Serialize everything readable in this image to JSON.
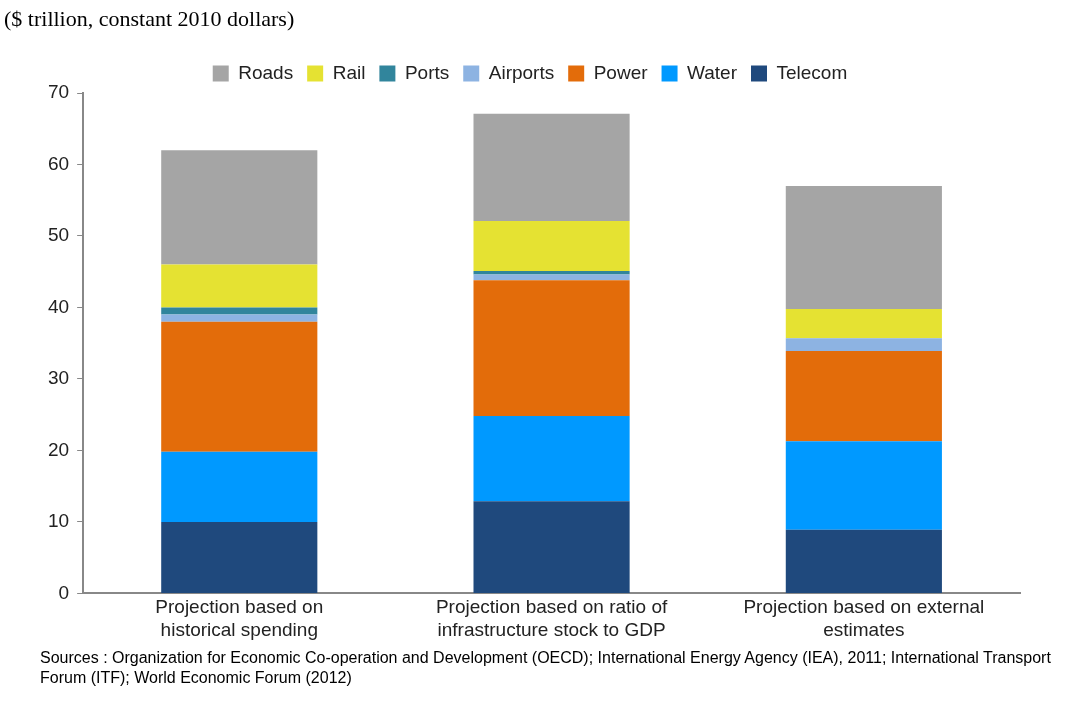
{
  "chart_data": {
    "type": "bar",
    "stacked": true,
    "ylabel": "($ trillion, constant 2010 dollars)",
    "categories": [
      "Projection based on historical spending",
      "Projection based on ratio of infrastructure stock to GDP",
      "Projection based on external estimates"
    ],
    "series": [
      {
        "name": "Telecom",
        "color": "#1f497d",
        "values": [
          10,
          12.9,
          8.9
        ]
      },
      {
        "name": "Water",
        "color": "#0099ff",
        "values": [
          9.8,
          11.9,
          12.4
        ]
      },
      {
        "name": "Power",
        "color": "#e36c0a",
        "values": [
          18.2,
          19,
          12.6
        ]
      },
      {
        "name": "Airports",
        "color": "#8db3e2",
        "values": [
          1,
          0.8,
          1.8
        ]
      },
      {
        "name": "Ports",
        "color": "#31859c",
        "values": [
          1,
          0.5,
          0
        ]
      },
      {
        "name": "Rail",
        "color": "#e5e232",
        "values": [
          6,
          7,
          4.1
        ]
      },
      {
        "name": "Roads",
        "color": "#a5a5a5",
        "values": [
          16,
          15,
          17.2
        ]
      }
    ],
    "ylim": [
      0,
      70
    ],
    "yticks": [
      0,
      10,
      20,
      30,
      40,
      50,
      60,
      70
    ],
    "legend": "top",
    "annotations": [
      "Sources : Organization for Economic Co-operation and Development (OECD); International Energy Agency (IEA), 2011; International Transport Forum (ITF); World Economic Forum (2012)"
    ]
  }
}
